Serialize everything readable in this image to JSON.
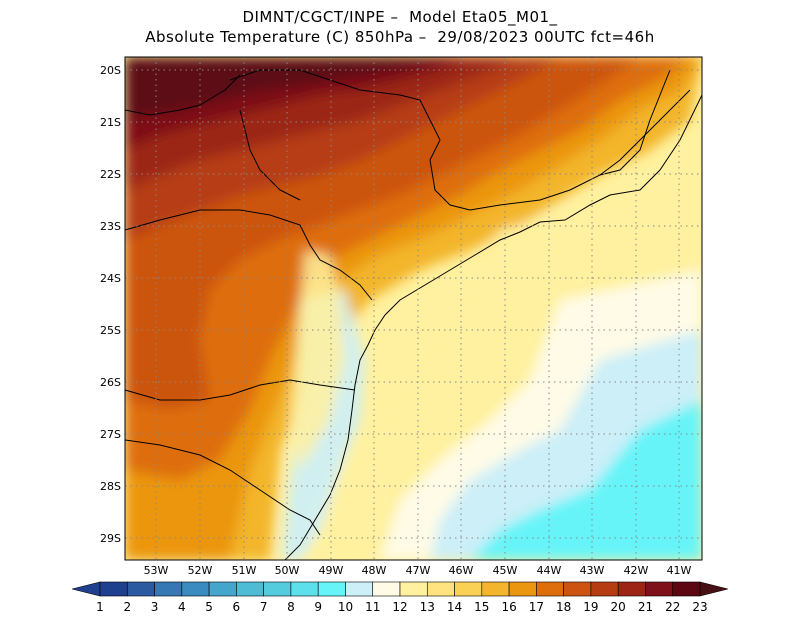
{
  "header": {
    "line1": "DIMNT/CGCT/INPE –  Model Eta05_M01_",
    "line2": "Absolute Temperature (C) 850hPa –  29/08/2023 00UTC fct=46h"
  },
  "map": {
    "lat_labels": [
      "20S",
      "21S",
      "22S",
      "23S",
      "24S",
      "25S",
      "26S",
      "27S",
      "28S",
      "29S"
    ],
    "lon_labels": [
      "53W",
      "52W",
      "51W",
      "50W",
      "49W",
      "48W",
      "47W",
      "46W",
      "45W",
      "44W",
      "43W",
      "42W",
      "41W"
    ],
    "lat_range": [
      -29.4,
      -19.6
    ],
    "lon_range": [
      -53.9,
      -40.6
    ]
  },
  "colorbar": {
    "labels": [
      "1",
      "2",
      "3",
      "4",
      "5",
      "6",
      "7",
      "8",
      "9",
      "10",
      "11",
      "12",
      "13",
      "14",
      "15",
      "16",
      "17",
      "18",
      "19",
      "20",
      "21",
      "22",
      "23"
    ],
    "colors": [
      "#1f3f8f",
      "#1f3f8f",
      "#2c5aa0",
      "#3578b4",
      "#3a8cc0",
      "#45a6cc",
      "#4fbcd6",
      "#55ccde",
      "#5ee0ec",
      "#66f4f8",
      "#cceff8",
      "#fffbe6",
      "#fff19f",
      "#ffe37e",
      "#fbd155",
      "#f3b52b",
      "#eb9611",
      "#de6e0c",
      "#cc5410",
      "#b63c13",
      "#9c2516",
      "#7e1119",
      "#5c0712",
      "#461015"
    ]
  },
  "colors": {
    "frame": "#000000",
    "grid": "#888888",
    "background": "#ffffff"
  }
}
